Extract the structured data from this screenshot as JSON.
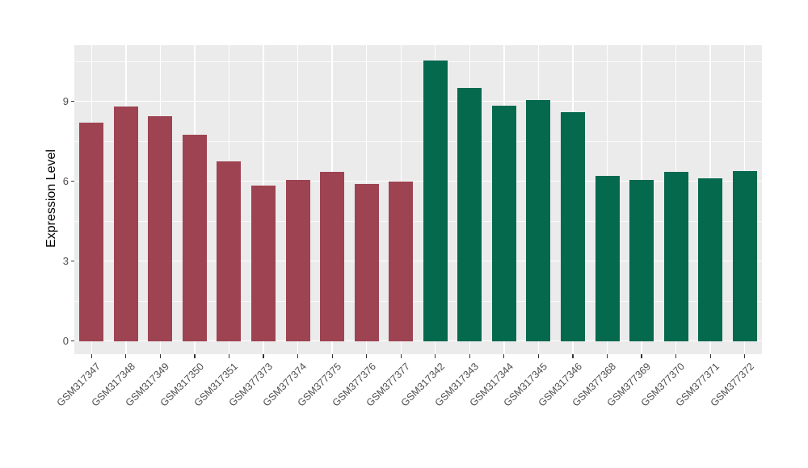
{
  "figure": {
    "background": "#ffffff",
    "panel_background": "#ebebeb",
    "grid_major_color": "#ffffff",
    "grid_minor_color": "#ffffff",
    "tick_color": "#333333",
    "axis_text_color": "#4d4d4d",
    "axis_title_color": "#000000"
  },
  "chart_data": {
    "type": "bar",
    "title": "",
    "xlabel": "",
    "ylabel": "Expression Level",
    "categories": [
      "GSM317347",
      "GSM317348",
      "GSM317349",
      "GSM317350",
      "GSM317351",
      "GSM377373",
      "GSM377374",
      "GSM377375",
      "GSM377376",
      "GSM377377",
      "GSM317342",
      "GSM317343",
      "GSM317344",
      "GSM317345",
      "GSM317346",
      "GSM377368",
      "GSM377369",
      "GSM377370",
      "GSM377371",
      "GSM377372"
    ],
    "values": [
      8.2,
      8.8,
      8.45,
      7.75,
      6.75,
      5.85,
      6.05,
      6.35,
      5.9,
      6.0,
      10.55,
      9.5,
      8.85,
      9.05,
      8.6,
      6.2,
      6.05,
      6.35,
      6.1,
      6.4
    ],
    "bar_colors": [
      "#9e4352",
      "#9e4352",
      "#9e4352",
      "#9e4352",
      "#9e4352",
      "#9e4352",
      "#9e4352",
      "#9e4352",
      "#9e4352",
      "#9e4352",
      "#05694e",
      "#05694e",
      "#05694e",
      "#05694e",
      "#05694e",
      "#05694e",
      "#05694e",
      "#05694e",
      "#05694e",
      "#05694e"
    ],
    "group_colors": {
      "group1_red": "#9e4352",
      "group2_green": "#05694e"
    },
    "y_ticks": [
      0,
      3,
      6,
      9
    ],
    "y_minor_ticks": [
      1.5,
      4.5,
      7.5,
      10.5
    ],
    "ylim": [
      -0.49,
      11.11
    ],
    "grid": true,
    "legend": false
  }
}
